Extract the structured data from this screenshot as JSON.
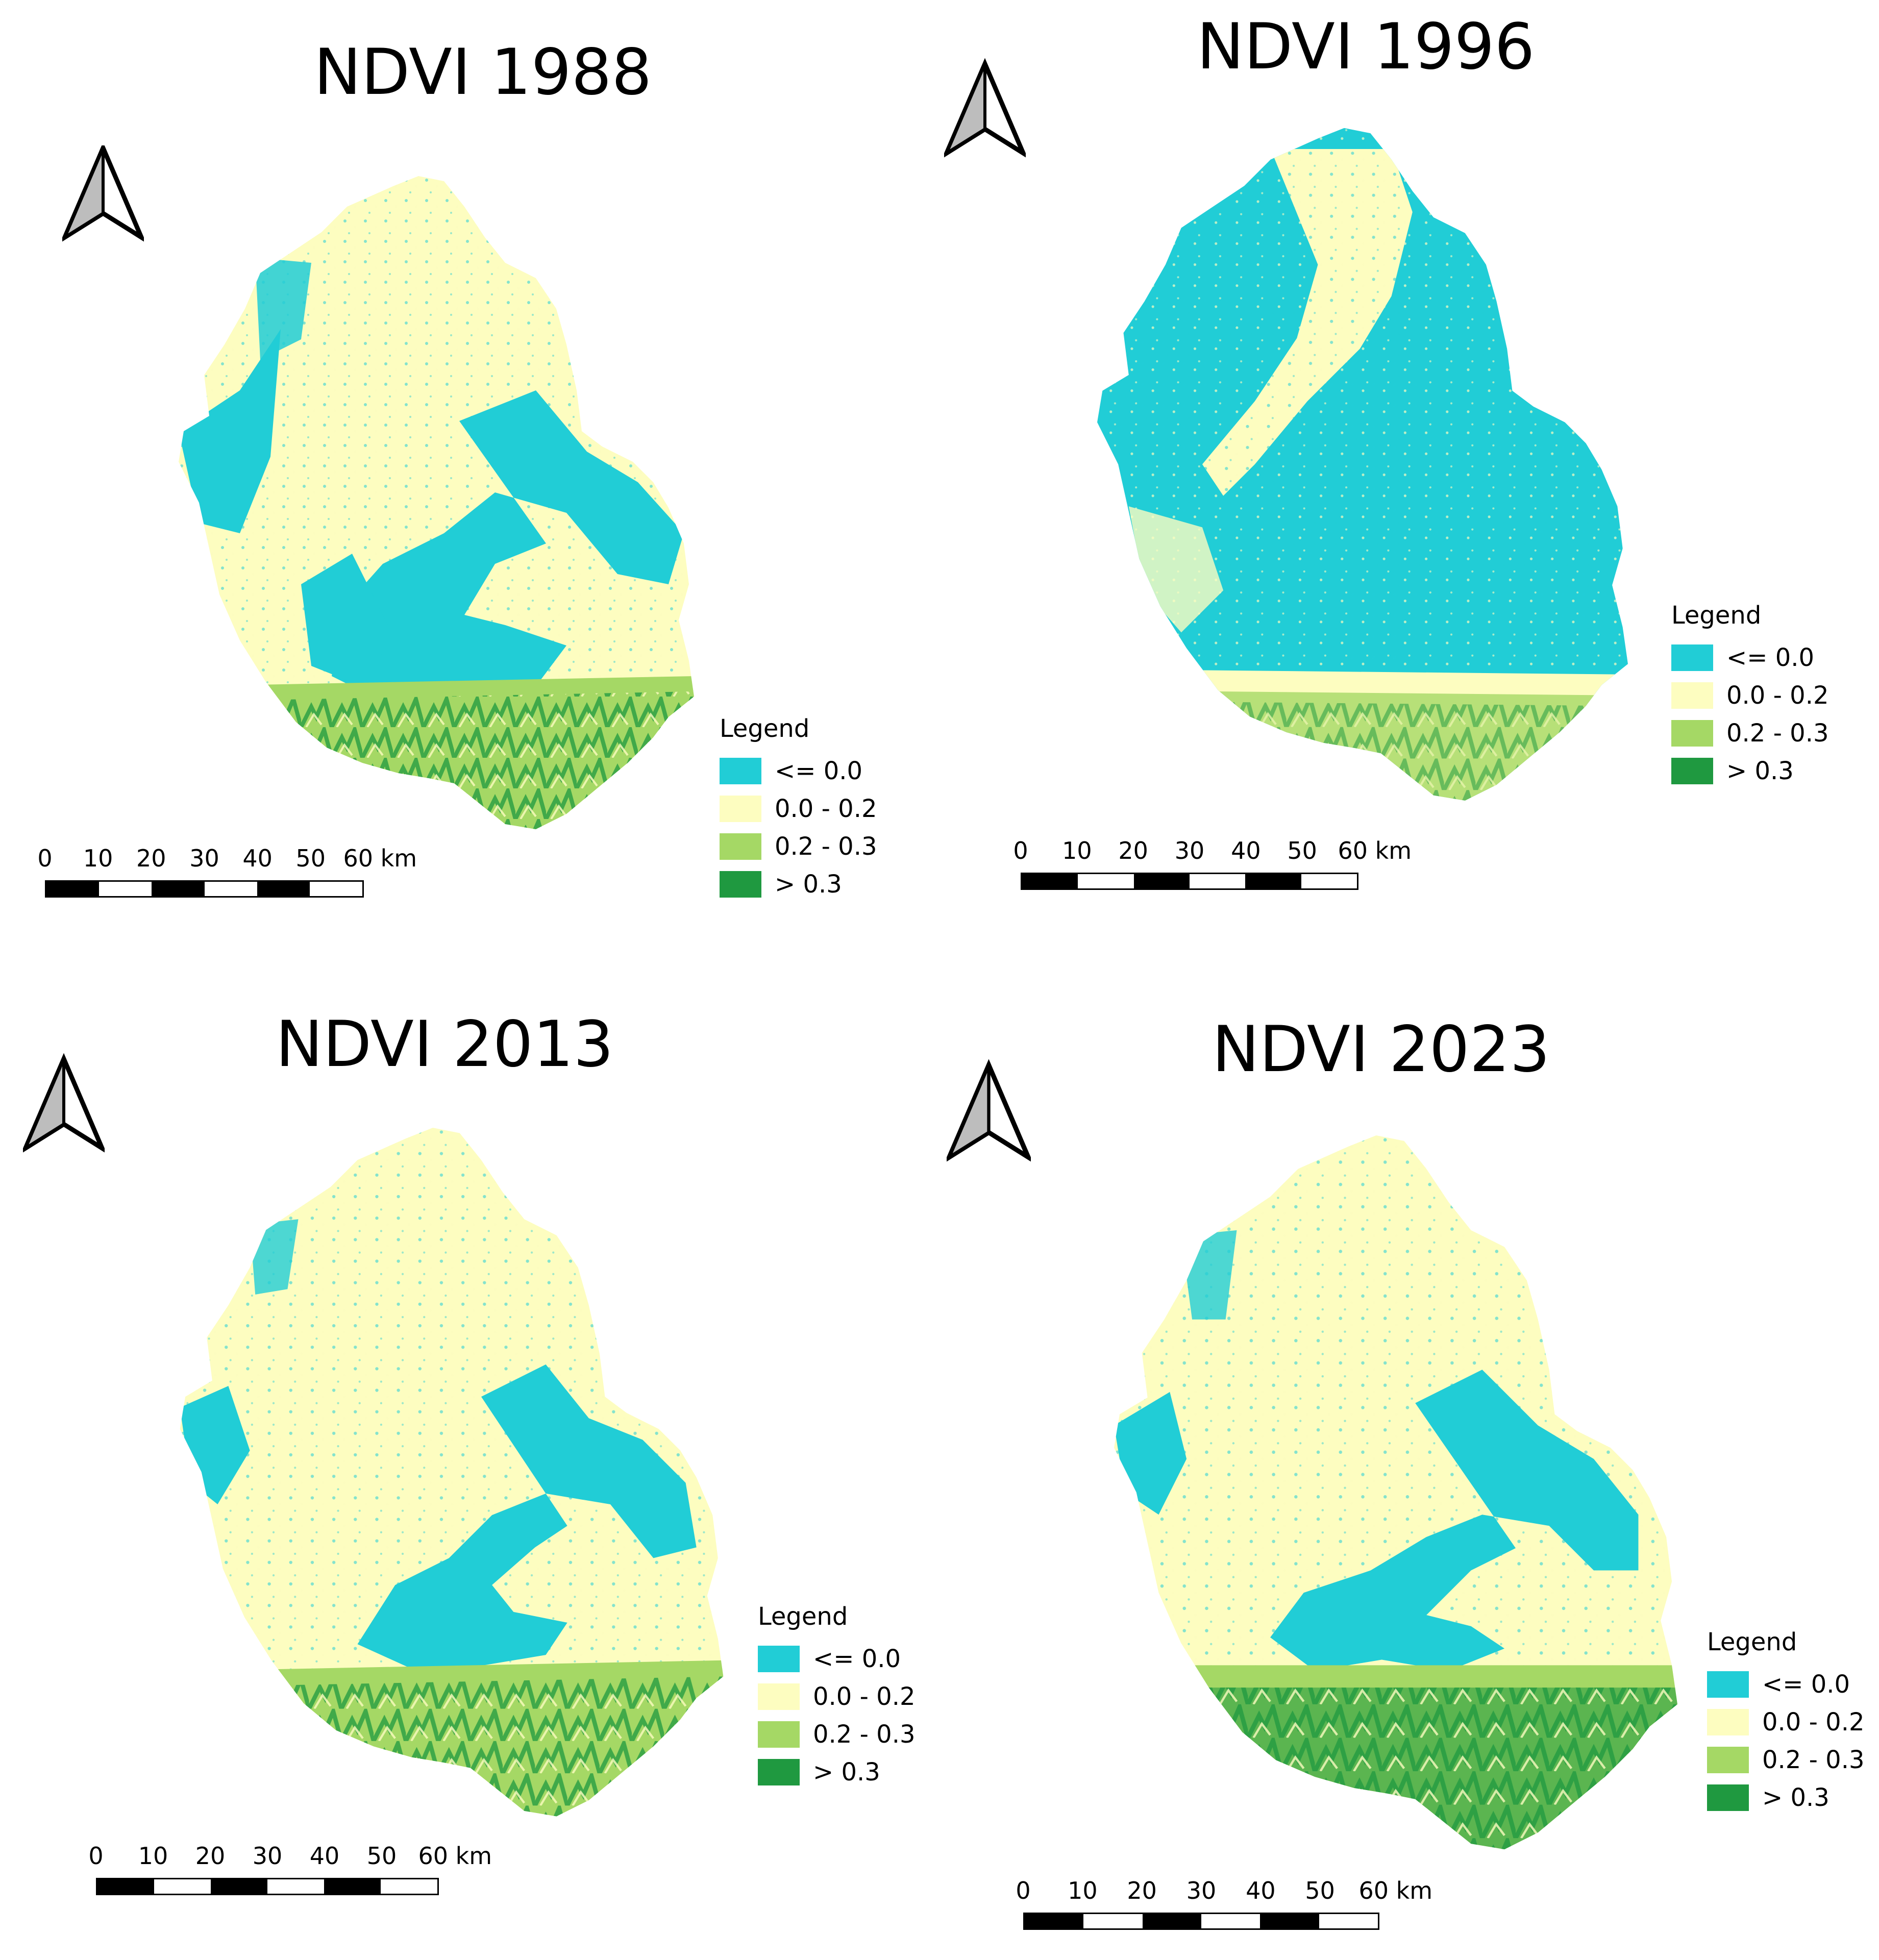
{
  "colors": {
    "c1": "#21cdd6",
    "c2": "#fdfdc0",
    "c3": "#a5d865",
    "c4": "#1f9940",
    "bar_dark": "#000000",
    "bar_light": "#ffffff"
  },
  "legend": {
    "title": "Legend",
    "items": [
      {
        "label": "<= 0.0",
        "color": "#21cdd6"
      },
      {
        "label": "0.0 - 0.2",
        "color": "#fdfdc0"
      },
      {
        "label": "0.2 - 0.3",
        "color": "#a5d865"
      },
      {
        "label": "> 0.3",
        "color": "#1f9940"
      }
    ]
  },
  "scale": {
    "ticks": [
      "0",
      "10",
      "20",
      "30",
      "40",
      "50",
      "60 km"
    ]
  },
  "panels": [
    {
      "title": "NDVI 1988",
      "arrow_icon": "north-arrow-icon"
    },
    {
      "title": "NDVI 1996",
      "arrow_icon": "north-arrow-icon"
    },
    {
      "title": "NDVI 2013",
      "arrow_icon": "north-arrow-icon"
    },
    {
      "title": "NDVI 2023",
      "arrow_icon": "north-arrow-icon"
    }
  ]
}
